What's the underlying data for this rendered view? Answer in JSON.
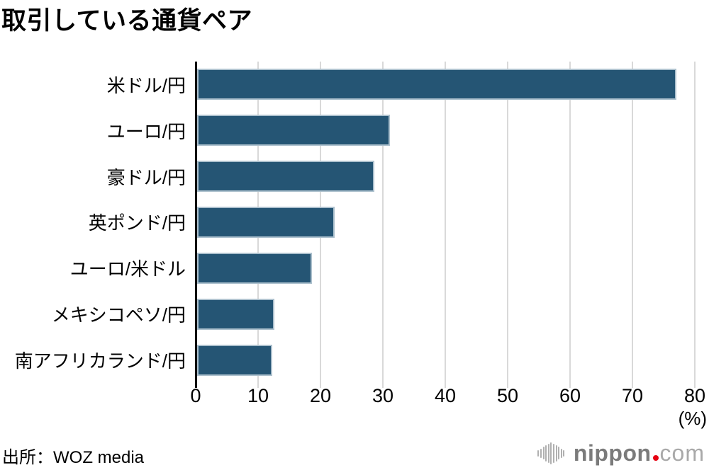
{
  "title": "取引している通貨ペア",
  "source": "出所：WOZ media",
  "logo": {
    "name": "nippon",
    "tld": "com"
  },
  "chart_data": {
    "type": "bar",
    "orientation": "horizontal",
    "title": "取引している通貨ペア",
    "categories": [
      "米ドル/円",
      "ユーロ/円",
      "豪ドル/円",
      "英ポンド/円",
      "ユーロ/米ドル",
      "メキシコペソ/円",
      "南アフリカランド/円"
    ],
    "values": [
      76.8,
      30.9,
      28.4,
      22.0,
      18.4,
      12.4,
      12.0
    ],
    "unit_label": "(%)",
    "x_ticks": [
      0,
      10,
      20,
      30,
      40,
      50,
      60,
      70,
      80
    ],
    "xlim": [
      0,
      80
    ],
    "grid": true,
    "bar_color": "#255574",
    "grid_color": "#d9d9d9",
    "axis_color": "#000000"
  }
}
